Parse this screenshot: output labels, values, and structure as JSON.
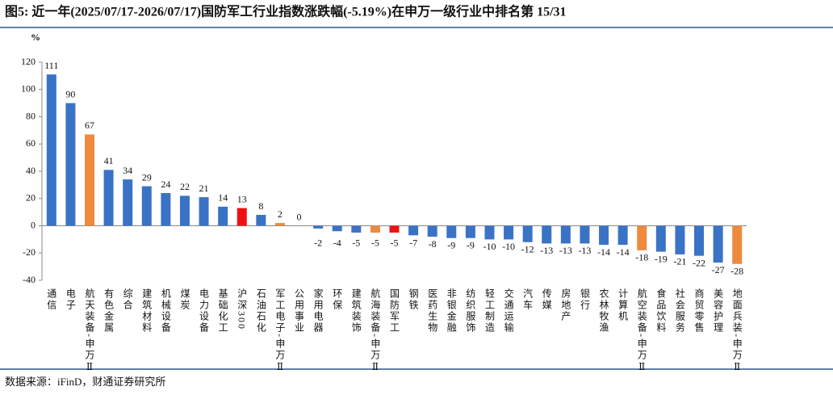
{
  "chart_data": {
    "type": "bar",
    "title": "图5: 近一年(2025/07/17-2026/07/17)国防军工行业指数涨跌幅(-5.19%)在申万一级行业中排名第 15/31",
    "y_label": "%",
    "source": "数据来源：iFinD，财通证券研究所",
    "categories": [
      "通信",
      "电子",
      "航天装备-申万Ⅱ",
      "有色金属",
      "综合",
      "建筑材料",
      "机械设备",
      "煤炭",
      "电力设备",
      "基础化工",
      "沪深300",
      "石油石化",
      "军工电子-申万Ⅱ",
      "公用事业",
      "家用电器",
      "环保",
      "建筑装饰",
      "航海装备-申万Ⅱ",
      "国防军工",
      "钢铁",
      "医药生物",
      "非银金融",
      "纺织服饰",
      "轻工制造",
      "交通运输",
      "汽车",
      "传媒",
      "房地产",
      "银行",
      "农林牧渔",
      "计算机",
      "航空装备-申万Ⅱ",
      "食品饮料",
      "社会服务",
      "商贸零售",
      "美容护理",
      "地面兵装-申万Ⅱ"
    ],
    "values": [
      111,
      90,
      67,
      41,
      34,
      29,
      24,
      22,
      21,
      14,
      13,
      8,
      2,
      0,
      -2,
      -4,
      -5,
      -5,
      -5,
      -7,
      -8,
      -9,
      -9,
      -10,
      -10,
      -12,
      -13,
      -13,
      -13,
      -14,
      -14,
      -18,
      -19,
      -21,
      -22,
      -27,
      -28
    ],
    "colors": [
      "#3a73c6",
      "#3a73c6",
      "#ed8a3e",
      "#3a73c6",
      "#3a73c6",
      "#3a73c6",
      "#3a73c6",
      "#3a73c6",
      "#3a73c6",
      "#3a73c6",
      "#ee1111",
      "#3a73c6",
      "#ed8a3e",
      "#3a73c6",
      "#3a73c6",
      "#3a73c6",
      "#3a73c6",
      "#ed8a3e",
      "#ee1111",
      "#3a73c6",
      "#3a73c6",
      "#3a73c6",
      "#3a73c6",
      "#3a73c6",
      "#3a73c6",
      "#3a73c6",
      "#3a73c6",
      "#3a73c6",
      "#3a73c6",
      "#3a73c6",
      "#3a73c6",
      "#ed8a3e",
      "#3a73c6",
      "#3a73c6",
      "#3a73c6",
      "#3a73c6",
      "#ed8a3e"
    ],
    "ylim": [
      -40,
      120
    ],
    "yticks": [
      -40,
      -20,
      0,
      20,
      40,
      60,
      80,
      100,
      120
    ]
  }
}
